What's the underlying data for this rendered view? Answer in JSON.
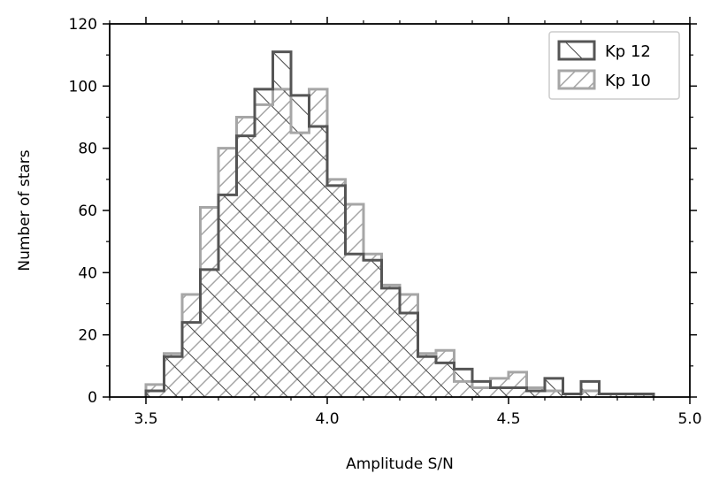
{
  "chart_data": {
    "type": "histogram",
    "xlabel": "Amplitude S/N",
    "ylabel": "Number of stars",
    "xlim": [
      3.4,
      5.0
    ],
    "ylim": [
      0,
      120
    ],
    "xticks": [
      3.5,
      4.0,
      4.5,
      5.0
    ],
    "xtick_labels": [
      "3.5",
      "4.0",
      "4.5",
      "5.0"
    ],
    "yticks": [
      0,
      20,
      40,
      60,
      80,
      100,
      120
    ],
    "ytick_labels": [
      "0",
      "20",
      "40",
      "60",
      "80",
      "100",
      "120"
    ],
    "bin_edges": [
      3.5,
      3.55,
      3.6,
      3.65,
      3.7,
      3.75,
      3.8,
      3.85,
      3.9,
      3.95,
      4.0,
      4.05,
      4.1,
      4.15,
      4.2,
      4.25,
      4.3,
      4.35,
      4.4,
      4.45,
      4.5,
      4.55,
      4.6,
      4.65,
      4.7,
      4.75,
      4.8,
      4.85,
      4.9
    ],
    "series": [
      {
        "name": "Kp 12",
        "color": "#555555",
        "hatch": "backslash",
        "values": [
          2,
          13,
          24,
          41,
          65,
          84,
          99,
          111,
          97,
          87,
          68,
          46,
          44,
          35,
          27,
          13,
          11,
          9,
          5,
          3,
          3,
          2,
          6,
          1,
          5,
          1,
          1,
          1
        ]
      },
      {
        "name": "Kp 10",
        "color": "#a6a6a6",
        "hatch": "slash",
        "values": [
          4,
          14,
          33,
          61,
          80,
          90,
          94,
          99,
          85,
          99,
          70,
          62,
          46,
          36,
          33,
          14,
          15,
          5,
          3,
          6,
          8,
          3,
          2,
          1,
          2,
          1,
          1,
          0
        ]
      }
    ],
    "legend": {
      "placement": "top-right",
      "entries": [
        "Kp 12",
        "Kp 10"
      ]
    },
    "grid": false
  }
}
